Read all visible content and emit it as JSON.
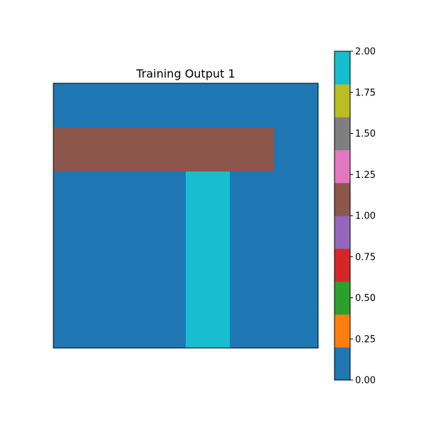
{
  "chart_data": {
    "type": "heatmap",
    "title": "Training Output 1",
    "grid": false,
    "rows": 6,
    "cols": 6,
    "values": [
      [
        0,
        0,
        0,
        0,
        0,
        0
      ],
      [
        1,
        1,
        1,
        1,
        1,
        0
      ],
      [
        0,
        0,
        0,
        2,
        0,
        0
      ],
      [
        0,
        0,
        0,
        2,
        0,
        0
      ],
      [
        0,
        0,
        0,
        2,
        0,
        0
      ],
      [
        0,
        0,
        0,
        2,
        0,
        0
      ]
    ],
    "colorbar": {
      "range": [
        0,
        2
      ],
      "tick_labels": [
        "0.00",
        "0.25",
        "0.50",
        "0.75",
        "1.00",
        "1.25",
        "1.50",
        "1.75",
        "2.00"
      ],
      "tick_values": [
        0,
        0.25,
        0.5,
        0.75,
        1.0,
        1.25,
        1.5,
        1.75,
        2.0
      ],
      "colors": [
        "#1f77b4",
        "#ff7f0e",
        "#2ca02c",
        "#d62728",
        "#9467bd",
        "#8c564b",
        "#e377c2",
        "#7f7f7f",
        "#bcbd22",
        "#17becf"
      ]
    }
  }
}
